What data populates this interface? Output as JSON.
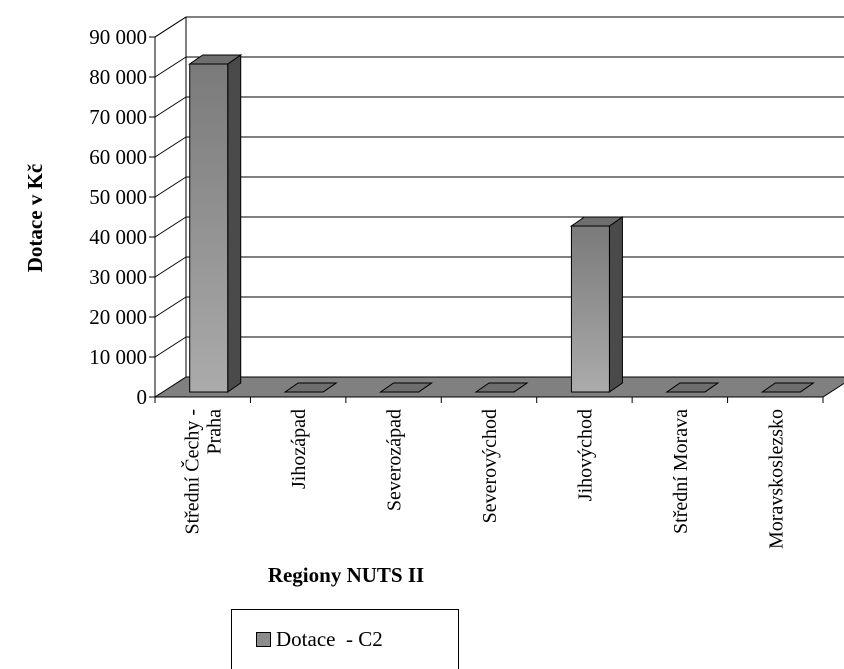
{
  "chart_data": {
    "type": "bar",
    "title": "",
    "xlabel": "Regiony NUTS II",
    "ylabel": "Dotace v Kč",
    "categories": [
      [
        "Střední Čechy -",
        "Praha"
      ],
      [
        "Jihozápad"
      ],
      [
        "Severozápad"
      ],
      [
        "Severovýchod"
      ],
      [
        "Jihovýchod"
      ],
      [
        "Střední Morava"
      ],
      [
        "Moravskoslezsko"
      ]
    ],
    "series": [
      {
        "name": "Dotace  - C2",
        "values": [
          82000,
          0,
          0,
          0,
          41500,
          0,
          0
        ]
      }
    ],
    "ylim": [
      0,
      90000
    ],
    "yticks": [
      0,
      10000,
      20000,
      30000,
      40000,
      50000,
      60000,
      70000,
      80000,
      90000
    ],
    "ytick_labels": [
      "0",
      "10 000",
      "20 000",
      "30 000",
      "40 000",
      "50 000",
      "60 000",
      "70 000",
      "80 000",
      "90 000"
    ],
    "grid": true,
    "legend_position": "bottom",
    "bar_color": "#8c8c8c",
    "floor_color": "#808080"
  }
}
